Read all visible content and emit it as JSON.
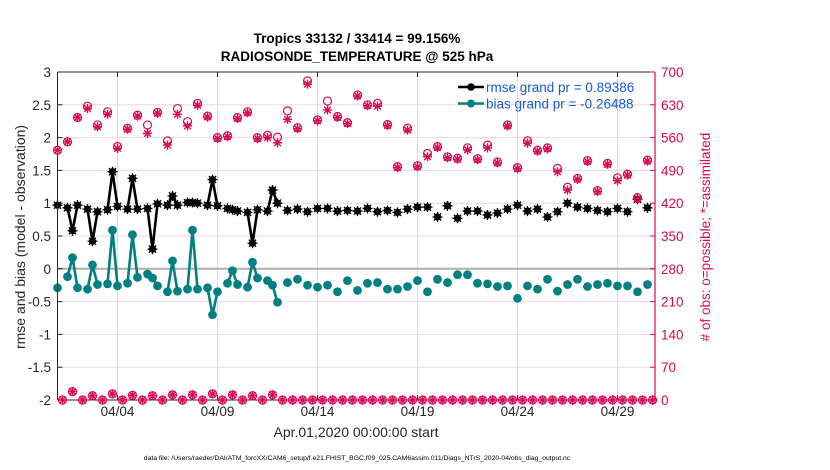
{
  "chart_data": {
    "type": "line",
    "title": [
      "Tropics 33132 / 33414 = 99.156%",
      "RADIOSONDE_TEMPERATURE @ 525 hPa"
    ],
    "xlabel": "Apr.01,2020 00:00:00 start",
    "ylabel": "rmse and bias (model - observation)",
    "ylabel_right": "# of obs: o=possible; *=assimilated",
    "x_units": "days since Apr.01,2020 00:00:00",
    "xlim": [
      0,
      29.875
    ],
    "ylim": [
      -2,
      3
    ],
    "ylim_right": [
      0,
      700
    ],
    "grid": true,
    "xticks": [
      {
        "value": 3,
        "label": "04/04"
      },
      {
        "value": 8,
        "label": "04/09"
      },
      {
        "value": 13,
        "label": "04/14"
      },
      {
        "value": 18,
        "label": "04/19"
      },
      {
        "value": 23,
        "label": "04/24"
      },
      {
        "value": 28,
        "label": "04/29"
      }
    ],
    "yticks": [
      {
        "value": -2,
        "label": "-2"
      },
      {
        "value": -1.5,
        "label": "-1.5"
      },
      {
        "value": -1,
        "label": "-1"
      },
      {
        "value": -0.5,
        "label": "-0.5"
      },
      {
        "value": 0,
        "label": "0"
      },
      {
        "value": 0.5,
        "label": "0.5"
      },
      {
        "value": 1,
        "label": "1"
      },
      {
        "value": 1.5,
        "label": "1.5"
      },
      {
        "value": 2,
        "label": "2"
      },
      {
        "value": 2.5,
        "label": "2.5"
      },
      {
        "value": 3,
        "label": "3"
      }
    ],
    "yticks_right": [
      {
        "value": 0,
        "label": "0"
      },
      {
        "value": 70,
        "label": "70"
      },
      {
        "value": 140,
        "label": "140"
      },
      {
        "value": 210,
        "label": "210"
      },
      {
        "value": 280,
        "label": "280"
      },
      {
        "value": 350,
        "label": "350"
      },
      {
        "value": 420,
        "label": "420"
      },
      {
        "value": 490,
        "label": "490"
      },
      {
        "value": 560,
        "label": "560"
      },
      {
        "value": 630,
        "label": "630"
      },
      {
        "value": 700,
        "label": "700"
      }
    ],
    "reference_line": {
      "y": 0,
      "color": "#b3abab"
    },
    "legend": {
      "placement": "top-right",
      "text_color": "#145ade",
      "entries": [
        {
          "series": "rmse",
          "label": "rmse grand pr = 0.89386"
        },
        {
          "series": "bias",
          "label": "bias grand pr = -0.26488"
        }
      ]
    },
    "x": [
      0,
      0.25,
      0.5,
      0.75,
      1,
      1.25,
      1.5,
      1.75,
      2,
      2.25,
      2.5,
      2.75,
      3,
      3.25,
      3.5,
      3.75,
      4,
      4.25,
      4.5,
      4.75,
      5,
      5.25,
      5.5,
      5.75,
      6,
      6.25,
      6.5,
      6.75,
      7,
      7.25,
      7.5,
      7.75,
      8,
      8.25,
      8.5,
      8.75,
      9,
      9.25,
      9.5,
      9.75,
      10,
      10.25,
      10.5,
      10.75,
      11,
      11.25,
      11.5,
      11.75,
      12,
      12.25,
      12.5,
      12.75,
      13,
      13.25,
      13.5,
      13.75,
      14,
      14.25,
      14.5,
      14.75,
      15,
      15.25,
      15.5,
      15.75,
      16,
      16.25,
      16.5,
      16.75,
      17,
      17.25,
      17.5,
      17.75,
      18,
      18.25,
      18.5,
      18.75,
      19,
      19.25,
      19.5,
      19.75,
      20,
      20.25,
      20.5,
      20.75,
      21,
      21.25,
      21.5,
      21.75,
      22,
      22.25,
      22.5,
      22.75,
      23,
      23.25,
      23.5,
      23.75,
      24,
      24.25,
      24.5,
      24.75,
      25,
      25.25,
      25.5,
      25.75,
      26,
      26.25,
      26.5,
      26.75,
      27,
      27.25,
      27.5,
      27.75,
      28,
      28.25,
      28.5,
      28.75,
      29,
      29.25,
      29.5,
      29.75
    ],
    "series": [
      {
        "name": "rmse",
        "axis": "left",
        "color": "#000000",
        "marker": "filled-asterisk",
        "line": true,
        "values": [
          0.97,
          null,
          0.93,
          0.58,
          0.97,
          null,
          0.91,
          0.42,
          0.87,
          null,
          0.9,
          1.48,
          0.95,
          null,
          0.91,
          1.38,
          0.91,
          null,
          0.92,
          0.3,
          0.99,
          null,
          0.97,
          1.11,
          0.97,
          null,
          1.01,
          1.01,
          1.0,
          null,
          0.97,
          1.36,
          0.96,
          null,
          0.92,
          0.9,
          0.88,
          null,
          0.86,
          0.39,
          0.9,
          null,
          0.88,
          1.2,
          1.0,
          null,
          0.89,
          null,
          0.91,
          null,
          0.87,
          null,
          0.92,
          null,
          0.92,
          null,
          0.88,
          null,
          0.89,
          null,
          0.88,
          null,
          0.92,
          null,
          0.87,
          null,
          0.89,
          null,
          0.86,
          null,
          0.91,
          null,
          0.94,
          null,
          0.94,
          null,
          0.79,
          null,
          0.96,
          null,
          0.77,
          null,
          0.88,
          null,
          0.88,
          null,
          0.82,
          null,
          0.85,
          null,
          0.91,
          null,
          0.97,
          null,
          0.88,
          null,
          0.91,
          null,
          0.79,
          null,
          0.87,
          null,
          1.0,
          null,
          0.94,
          null,
          0.92,
          null,
          0.89,
          null,
          0.87,
          null,
          0.92,
          null,
          0.87,
          null,
          1.06,
          null,
          0.93,
          null
        ]
      },
      {
        "name": "bias",
        "axis": "left",
        "color": "#008080",
        "marker": "filled-circle",
        "line": true,
        "values": [
          -0.29,
          null,
          -0.12,
          0.17,
          -0.29,
          null,
          -0.31,
          0.06,
          -0.24,
          null,
          -0.23,
          0.59,
          -0.26,
          null,
          -0.22,
          0.52,
          -0.13,
          null,
          -0.08,
          -0.14,
          -0.26,
          null,
          -0.35,
          0.12,
          -0.34,
          null,
          -0.31,
          0.59,
          -0.31,
          null,
          -0.29,
          -0.7,
          -0.35,
          null,
          -0.22,
          -0.03,
          -0.24,
          null,
          -0.28,
          0.1,
          -0.14,
          null,
          -0.18,
          -0.25,
          -0.51,
          null,
          -0.21,
          null,
          -0.16,
          null,
          -0.25,
          null,
          -0.28,
          null,
          -0.25,
          null,
          -0.35,
          null,
          -0.18,
          null,
          -0.33,
          null,
          -0.22,
          null,
          -0.21,
          null,
          -0.31,
          null,
          -0.31,
          null,
          -0.27,
          null,
          -0.18,
          null,
          -0.35,
          null,
          -0.16,
          null,
          -0.21,
          null,
          -0.09,
          null,
          -0.09,
          null,
          -0.22,
          null,
          -0.23,
          null,
          -0.27,
          null,
          -0.26,
          null,
          -0.45,
          null,
          -0.26,
          null,
          -0.31,
          null,
          -0.16,
          null,
          -0.34,
          null,
          -0.24,
          null,
          -0.16,
          null,
          -0.27,
          null,
          -0.24,
          null,
          -0.22,
          null,
          -0.26,
          null,
          -0.26,
          null,
          -0.35,
          null,
          -0.24,
          null
        ]
      },
      {
        "name": "possible",
        "axis": "right",
        "color": "#d60b54",
        "marker": "open-circle",
        "line": false,
        "values": [
          533,
          0,
          551,
          18,
          603,
          0,
          627,
          9,
          587,
          0,
          615,
          13,
          541,
          0,
          580,
          10,
          608,
          0,
          587,
          9,
          614,
          0,
          553,
          11,
          622,
          0,
          594,
          11,
          633,
          0,
          606,
          13,
          560,
          0,
          564,
          11,
          603,
          0,
          615,
          9,
          560,
          0,
          565,
          11,
          561,
          0,
          617,
          0,
          581,
          0,
          681,
          0,
          598,
          0,
          638,
          0,
          605,
          0,
          592,
          0,
          651,
          0,
          630,
          0,
          633,
          0,
          588,
          0,
          498,
          0,
          580,
          0,
          500,
          0,
          526,
          0,
          541,
          0,
          519,
          0,
          516,
          0,
          538,
          0,
          515,
          0,
          544,
          0,
          508,
          0,
          587,
          0,
          496,
          0,
          553,
          0,
          533,
          0,
          538,
          0,
          494,
          0,
          454,
          0,
          473,
          0,
          511,
          0,
          447,
          0,
          505,
          0,
          474,
          0,
          482,
          0,
          432,
          0,
          512,
          0
        ]
      },
      {
        "name": "assimilated",
        "axis": "right",
        "color": "#d60b54",
        "marker": "asterisk",
        "line": false,
        "values": [
          533,
          0,
          551,
          18,
          603,
          0,
          622,
          9,
          583,
          0,
          610,
          13,
          537,
          0,
          578,
          10,
          606,
          0,
          569,
          9,
          612,
          0,
          544,
          11,
          610,
          0,
          585,
          11,
          629,
          0,
          604,
          13,
          558,
          0,
          562,
          11,
          601,
          0,
          613,
          9,
          558,
          0,
          560,
          11,
          549,
          0,
          599,
          0,
          579,
          0,
          674,
          0,
          596,
          0,
          619,
          0,
          603,
          0,
          590,
          0,
          649,
          0,
          628,
          0,
          627,
          0,
          586,
          0,
          496,
          0,
          576,
          0,
          498,
          0,
          519,
          0,
          539,
          0,
          517,
          0,
          514,
          0,
          534,
          0,
          513,
          0,
          538,
          0,
          506,
          0,
          585,
          0,
          494,
          0,
          548,
          0,
          531,
          0,
          536,
          0,
          487,
          0,
          448,
          0,
          471,
          0,
          509,
          0,
          445,
          0,
          503,
          0,
          468,
          0,
          480,
          0,
          430,
          0,
          510,
          0
        ]
      }
    ]
  },
  "footer": {
    "data_file": "data file: /Users/raeder/DAI/ATM_forcXX/CAM6_setup/f.e21.FHIST_BGC.f09_025.CAM6assim.011/Diags_NTrS_2020-04/obs_diag_output.nc"
  }
}
